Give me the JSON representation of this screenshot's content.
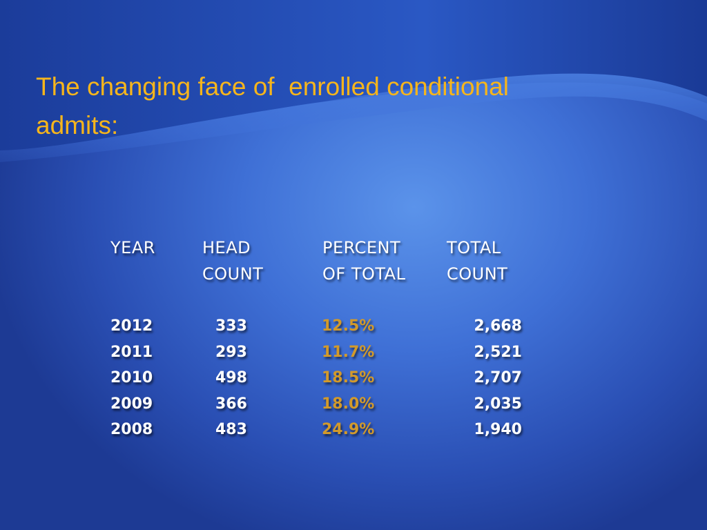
{
  "title": "The changing face of  enrolled conditional admits:",
  "table": {
    "header": [
      [
        "YEAR"
      ],
      [
        "HEAD",
        "COUNT"
      ],
      [
        "PERCENT",
        "OF TOTAL"
      ],
      [
        "TOTAL",
        "COUNT"
      ]
    ],
    "rows": [
      [
        "2012",
        "333",
        "12.5%",
        "2,668"
      ],
      [
        "2011",
        "293",
        "11.7%",
        "2,521"
      ],
      [
        "2010",
        "498",
        "18.5%",
        "2,707"
      ],
      [
        "2009",
        "366",
        "18.0%",
        "2,035"
      ],
      [
        "2008",
        "483",
        "24.9%",
        "1,940"
      ]
    ]
  }
}
